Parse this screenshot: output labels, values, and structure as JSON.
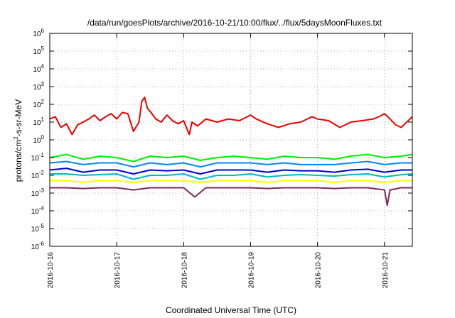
{
  "chart_data": {
    "type": "line",
    "title": "/data/run/goesPlots/archive/2016-10-21/10:00/flux/../flux/5daysMoonFluxes.txt",
    "xlabel": "Coordinated Universal Time (UTC)",
    "ylabel": {
      "base": "protons/cm",
      "sup": "2",
      "rest": "-s-sr-MeV"
    },
    "yscale": "log",
    "ylim": [
      1e-06,
      1000000.0
    ],
    "yticks": [
      {
        "value": 1e-06,
        "base": "10",
        "exp": "-6"
      },
      {
        "value": 1e-05,
        "base": "10",
        "exp": "-5"
      },
      {
        "value": 0.0001,
        "base": "10",
        "exp": "-4"
      },
      {
        "value": 0.001,
        "base": "10",
        "exp": "-3"
      },
      {
        "value": 0.01,
        "base": "10",
        "exp": "-2"
      },
      {
        "value": 0.1,
        "base": "10",
        "exp": "-1"
      },
      {
        "value": 1,
        "base": "10",
        "exp": "0"
      },
      {
        "value": 10,
        "base": "10",
        "exp": "1"
      },
      {
        "value": 100,
        "base": "10",
        "exp": "2"
      },
      {
        "value": 1000,
        "base": "10",
        "exp": "3"
      },
      {
        "value": 10000,
        "base": "10",
        "exp": "4"
      },
      {
        "value": 100000,
        "base": "10",
        "exp": "5"
      },
      {
        "value": 1000000,
        "base": "10",
        "exp": "6"
      }
    ],
    "xlim": [
      "2016-10-16",
      "2016-10-21T10:00"
    ],
    "xticks": [
      {
        "value": "2016-10-16",
        "label": "2016-10-16"
      },
      {
        "value": "2016-10-17",
        "label": "2016-10-17"
      },
      {
        "value": "2016-10-18",
        "label": "2016-10-18"
      },
      {
        "value": "2016-10-19",
        "label": "2016-10-19"
      },
      {
        "value": "2016-10-20",
        "label": "2016-10-20"
      },
      {
        "value": "2016-10-21",
        "label": "2016-10-21"
      }
    ],
    "grid": true,
    "legend": "none",
    "series": [
      {
        "color": "#ee0000",
        "x": [
          "2016-10-16T00:00",
          "2016-10-16T02:00",
          "2016-10-16T04:00",
          "2016-10-16T06:00",
          "2016-10-16T08:00",
          "2016-10-16T10:00",
          "2016-10-16T12:00",
          "2016-10-16T14:00",
          "2016-10-16T16:00",
          "2016-10-16T18:00",
          "2016-10-16T20:00",
          "2016-10-16T22:00",
          "2016-10-17T00:00",
          "2016-10-17T02:00",
          "2016-10-17T04:00",
          "2016-10-17T06:00",
          "2016-10-17T08:00",
          "2016-10-17T09:00",
          "2016-10-17T10:00",
          "2016-10-17T11:00",
          "2016-10-17T12:00",
          "2016-10-17T14:00",
          "2016-10-17T16:00",
          "2016-10-17T18:00",
          "2016-10-17T20:00",
          "2016-10-17T22:00",
          "2016-10-18T00:00",
          "2016-10-18T02:00",
          "2016-10-18T03:00",
          "2016-10-18T05:00",
          "2016-10-18T08:00",
          "2016-10-18T12:00",
          "2016-10-18T16:00",
          "2016-10-18T20:00",
          "2016-10-19T00:00",
          "2016-10-19T02:00",
          "2016-10-19T06:00",
          "2016-10-19T10:00",
          "2016-10-19T14:00",
          "2016-10-19T18:00",
          "2016-10-19T22:00",
          "2016-10-20T00:00",
          "2016-10-20T04:00",
          "2016-10-20T08:00",
          "2016-10-20T12:00",
          "2016-10-20T16:00",
          "2016-10-20T20:00",
          "2016-10-20T22:00",
          "2016-10-21T00:00",
          "2016-10-21T02:00",
          "2016-10-21T04:00",
          "2016-10-21T06:00",
          "2016-10-21T08:00",
          "2016-10-21T10:00"
        ],
        "y": [
          15,
          20,
          5,
          8,
          2,
          7,
          10,
          15,
          25,
          12,
          20,
          30,
          15,
          35,
          30,
          3,
          10,
          150,
          250,
          60,
          40,
          15,
          10,
          25,
          12,
          8,
          12,
          2,
          10,
          6,
          15,
          10,
          15,
          12,
          25,
          15,
          8,
          5,
          8,
          10,
          20,
          15,
          12,
          5,
          10,
          12,
          15,
          20,
          30,
          15,
          7,
          5,
          10,
          20
        ]
      },
      {
        "color": "#00ee00",
        "x": [
          "2016-10-16T00:00",
          "2016-10-16T06:00",
          "2016-10-16T12:00",
          "2016-10-16T18:00",
          "2016-10-17T00:00",
          "2016-10-17T06:00",
          "2016-10-17T12:00",
          "2016-10-17T18:00",
          "2016-10-18T00:00",
          "2016-10-18T06:00",
          "2016-10-18T12:00",
          "2016-10-18T18:00",
          "2016-10-19T00:00",
          "2016-10-19T06:00",
          "2016-10-19T12:00",
          "2016-10-19T18:00",
          "2016-10-20T00:00",
          "2016-10-20T06:00",
          "2016-10-20T12:00",
          "2016-10-20T18:00",
          "2016-10-21T00:00",
          "2016-10-21T06:00",
          "2016-10-21T10:00"
        ],
        "y": [
          0.1,
          0.15,
          0.08,
          0.12,
          0.1,
          0.06,
          0.12,
          0.1,
          0.12,
          0.07,
          0.1,
          0.12,
          0.1,
          0.08,
          0.12,
          0.1,
          0.1,
          0.08,
          0.12,
          0.15,
          0.1,
          0.12,
          0.15
        ]
      },
      {
        "color": "#0088ff",
        "x": [
          "2016-10-16T00:00",
          "2016-10-16T06:00",
          "2016-10-16T12:00",
          "2016-10-16T18:00",
          "2016-10-17T00:00",
          "2016-10-17T06:00",
          "2016-10-17T12:00",
          "2016-10-17T18:00",
          "2016-10-18T00:00",
          "2016-10-18T06:00",
          "2016-10-18T12:00",
          "2016-10-18T18:00",
          "2016-10-19T00:00",
          "2016-10-19T06:00",
          "2016-10-19T12:00",
          "2016-10-19T18:00",
          "2016-10-20T00:00",
          "2016-10-20T06:00",
          "2016-10-20T12:00",
          "2016-10-20T18:00",
          "2016-10-21T00:00",
          "2016-10-21T06:00",
          "2016-10-21T10:00"
        ],
        "y": [
          0.05,
          0.06,
          0.04,
          0.05,
          0.05,
          0.03,
          0.05,
          0.04,
          0.05,
          0.03,
          0.05,
          0.05,
          0.05,
          0.04,
          0.05,
          0.04,
          0.04,
          0.04,
          0.05,
          0.06,
          0.04,
          0.05,
          0.05
        ]
      },
      {
        "color": "#0000cc",
        "x": [
          "2016-10-16T00:00",
          "2016-10-16T06:00",
          "2016-10-16T12:00",
          "2016-10-16T18:00",
          "2016-10-17T00:00",
          "2016-10-17T06:00",
          "2016-10-17T12:00",
          "2016-10-17T18:00",
          "2016-10-18T00:00",
          "2016-10-18T06:00",
          "2016-10-18T12:00",
          "2016-10-18T18:00",
          "2016-10-19T00:00",
          "2016-10-19T06:00",
          "2016-10-19T12:00",
          "2016-10-19T18:00",
          "2016-10-20T00:00",
          "2016-10-20T06:00",
          "2016-10-20T12:00",
          "2016-10-20T18:00",
          "2016-10-21T00:00",
          "2016-10-21T06:00",
          "2016-10-21T10:00"
        ],
        "y": [
          0.02,
          0.025,
          0.015,
          0.02,
          0.02,
          0.012,
          0.02,
          0.018,
          0.02,
          0.012,
          0.02,
          0.02,
          0.02,
          0.015,
          0.02,
          0.018,
          0.018,
          0.015,
          0.02,
          0.022,
          0.015,
          0.02,
          0.02
        ]
      },
      {
        "color": "#00bbbb",
        "x": [
          "2016-10-16T00:00",
          "2016-10-16T06:00",
          "2016-10-16T12:00",
          "2016-10-16T18:00",
          "2016-10-17T00:00",
          "2016-10-17T06:00",
          "2016-10-17T12:00",
          "2016-10-17T18:00",
          "2016-10-18T00:00",
          "2016-10-18T06:00",
          "2016-10-18T12:00",
          "2016-10-18T18:00",
          "2016-10-19T00:00",
          "2016-10-19T06:00",
          "2016-10-19T12:00",
          "2016-10-19T18:00",
          "2016-10-20T00:00",
          "2016-10-20T06:00",
          "2016-10-20T12:00",
          "2016-10-20T18:00",
          "2016-10-21T00:00",
          "2016-10-21T06:00",
          "2016-10-21T10:00"
        ],
        "y": [
          0.012,
          0.012,
          0.01,
          0.011,
          0.012,
          0.006,
          0.01,
          0.01,
          0.012,
          0.006,
          0.01,
          0.01,
          0.012,
          0.008,
          0.01,
          0.011,
          0.01,
          0.009,
          0.011,
          0.012,
          0.008,
          0.011,
          0.012
        ]
      },
      {
        "color": "#ffff00",
        "x": [
          "2016-10-16T00:00",
          "2016-10-16T06:00",
          "2016-10-16T12:00",
          "2016-10-16T18:00",
          "2016-10-17T00:00",
          "2016-10-17T06:00",
          "2016-10-17T12:00",
          "2016-10-17T18:00",
          "2016-10-18T00:00",
          "2016-10-18T06:00",
          "2016-10-18T12:00",
          "2016-10-18T18:00",
          "2016-10-19T00:00",
          "2016-10-19T06:00",
          "2016-10-19T12:00",
          "2016-10-19T18:00",
          "2016-10-20T00:00",
          "2016-10-20T06:00",
          "2016-10-20T12:00",
          "2016-10-20T18:00",
          "2016-10-21T00:00",
          "2016-10-21T06:00",
          "2016-10-21T10:00"
        ],
        "y": [
          0.005,
          0.005,
          0.004,
          0.005,
          0.005,
          0.004,
          0.005,
          0.005,
          0.005,
          0.004,
          0.005,
          0.005,
          0.005,
          0.004,
          0.005,
          0.005,
          0.005,
          0.004,
          0.005,
          0.005,
          0.004,
          0.005,
          0.005
        ]
      },
      {
        "color": "#7a2a5a",
        "x": [
          "2016-10-16T00:00",
          "2016-10-16T06:00",
          "2016-10-16T12:00",
          "2016-10-16T18:00",
          "2016-10-17T00:00",
          "2016-10-17T06:00",
          "2016-10-17T12:00",
          "2016-10-17T18:00",
          "2016-10-18T00:00",
          "2016-10-18T04:00",
          "2016-10-18T08:00",
          "2016-10-18T12:00",
          "2016-10-18T18:00",
          "2016-10-19T00:00",
          "2016-10-19T06:00",
          "2016-10-19T12:00",
          "2016-10-19T18:00",
          "2016-10-20T00:00",
          "2016-10-20T06:00",
          "2016-10-20T12:00",
          "2016-10-20T18:00",
          "2016-10-21T00:00",
          "2016-10-21T01:00",
          "2016-10-21T02:00",
          "2016-10-21T06:00",
          "2016-10-21T10:00"
        ],
        "y": [
          0.002,
          0.002,
          0.0018,
          0.002,
          0.002,
          0.0015,
          0.002,
          0.002,
          0.002,
          0.0006,
          0.002,
          0.002,
          0.002,
          0.002,
          0.0018,
          0.002,
          0.002,
          0.002,
          0.0018,
          0.002,
          0.002,
          0.0015,
          0.0002,
          0.0015,
          0.002,
          0.002
        ]
      }
    ]
  }
}
